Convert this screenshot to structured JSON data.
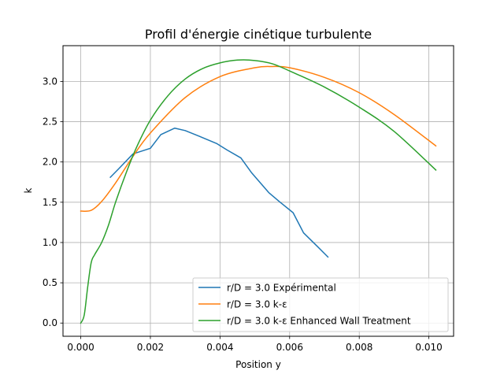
{
  "chart_data": {
    "type": "line",
    "title": "Profil d'énergie cinétique turbulente",
    "xlabel": "Position y",
    "ylabel": "k",
    "xlim": [
      -0.00051,
      0.01071
    ],
    "ylim": [
      -0.164,
      3.444
    ],
    "x_ticks": [
      0.0,
      0.002,
      0.004,
      0.006,
      0.008,
      0.01
    ],
    "x_tick_labels": [
      "0.000",
      "0.002",
      "0.004",
      "0.006",
      "0.008",
      "0.010"
    ],
    "y_ticks": [
      0.0,
      0.5,
      1.0,
      1.5,
      2.0,
      2.5,
      3.0
    ],
    "y_tick_labels": [
      "0.0",
      "0.5",
      "1.0",
      "1.5",
      "2.0",
      "2.5",
      "3.0"
    ],
    "grid": true,
    "legend_position": "lower-right",
    "series": [
      {
        "name": "r/D = 3.0 Expérimental",
        "color": "#1f77b4",
        "x": [
          0.00085,
          0.0011,
          0.0015,
          0.002,
          0.0023,
          0.0027,
          0.003,
          0.0034,
          0.0039,
          0.0042,
          0.0046,
          0.0049,
          0.0054,
          0.0057,
          0.0061,
          0.0064,
          0.0068,
          0.0071
        ],
        "y": [
          1.81,
          1.92,
          2.1,
          2.17,
          2.34,
          2.42,
          2.39,
          2.32,
          2.23,
          2.15,
          2.05,
          1.87,
          1.62,
          1.51,
          1.37,
          1.12,
          0.95,
          0.82
        ]
      },
      {
        "name": "r/D = 3.0 k-ε",
        "color": "#ff7f0e",
        "x": [
          0.0,
          0.0003,
          0.0006,
          0.001,
          0.0015,
          0.002,
          0.003,
          0.004,
          0.005,
          0.0055,
          0.006,
          0.007,
          0.008,
          0.009,
          0.0102
        ],
        "y": [
          1.39,
          1.4,
          1.51,
          1.74,
          2.07,
          2.36,
          2.8,
          3.06,
          3.17,
          3.185,
          3.17,
          3.05,
          2.86,
          2.59,
          2.2
        ]
      },
      {
        "name": "r/D = 3.0  k-ε Enhanced Wall Treatment",
        "color": "#2ca02c",
        "x": [
          0.0,
          0.0001,
          0.0002,
          0.0003,
          0.0004,
          0.0006,
          0.0008,
          0.001,
          0.0013,
          0.0016,
          0.002,
          0.0025,
          0.003,
          0.0035,
          0.004,
          0.0045,
          0.005,
          0.0055,
          0.006,
          0.007,
          0.008,
          0.009,
          0.0102
        ],
        "y": [
          0.0,
          0.1,
          0.45,
          0.75,
          0.85,
          1.0,
          1.22,
          1.5,
          1.86,
          2.18,
          2.52,
          2.82,
          3.03,
          3.16,
          3.23,
          3.265,
          3.26,
          3.22,
          3.13,
          2.93,
          2.68,
          2.38,
          1.9
        ]
      }
    ]
  }
}
